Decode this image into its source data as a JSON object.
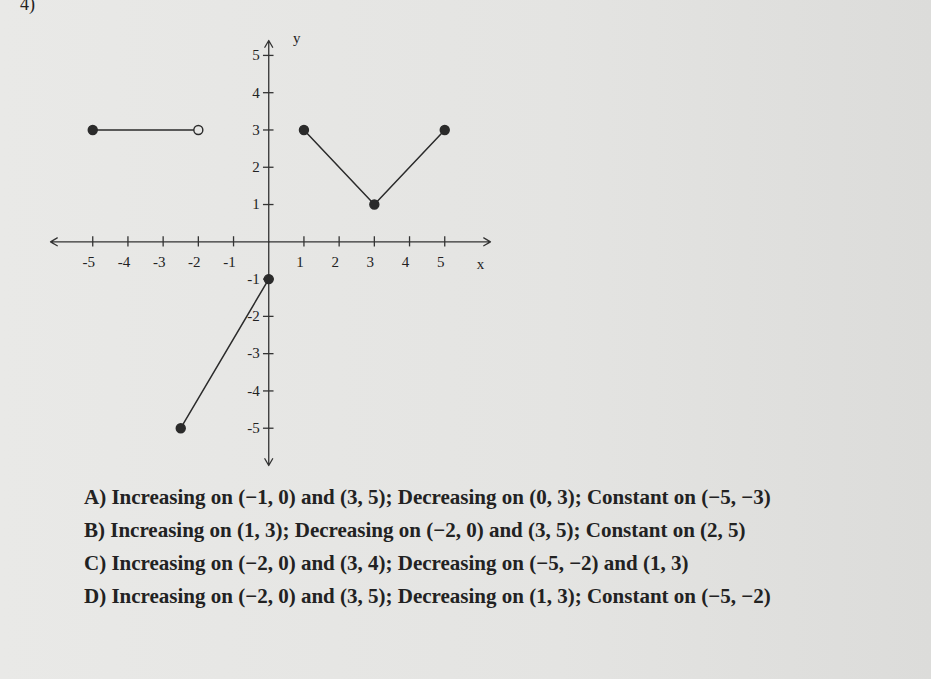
{
  "chart_data": {
    "type": "line",
    "x_label": "x",
    "y_label": "y",
    "xlim": [
      -6.2,
      6.3
    ],
    "ylim": [
      -6,
      5.4
    ],
    "xticks": [
      -5,
      -4,
      -3,
      -2,
      -1,
      1,
      2,
      3,
      4,
      5
    ],
    "yticks": [
      -5,
      -4,
      -3,
      -2,
      -1,
      1,
      2,
      3,
      4,
      5
    ],
    "grid": false,
    "color": "#2b2b2b",
    "series": [
      {
        "x": [
          -5,
          -2
        ],
        "values": [
          3,
          3
        ],
        "markers": [
          "closed",
          "open"
        ]
      },
      {
        "x": [
          -2.5,
          0
        ],
        "values": [
          -5,
          -1
        ],
        "markers": [
          "closed",
          "closed"
        ]
      },
      {
        "x": [
          1,
          3,
          5
        ],
        "values": [
          3,
          1,
          3
        ],
        "markers": [
          "closed",
          "closed",
          "closed"
        ]
      }
    ]
  },
  "question": "4)",
  "choices": [
    "A) Increasing on (−1, 0) and (3, 5); Decreasing on (0, 3); Constant on (−5, −3)",
    "B) Increasing  on (1, 3); Decreasing on (−2, 0) and (3, 5); Constant on (2, 5)",
    "C) Increasing on (−2, 0) and (3, 4); Decreasing on (−5, −2) and (1, 3)",
    "D) Increasing on (−2, 0) and (3, 5); Decreasing on (1, 3); Constant on (−5, −2)"
  ]
}
